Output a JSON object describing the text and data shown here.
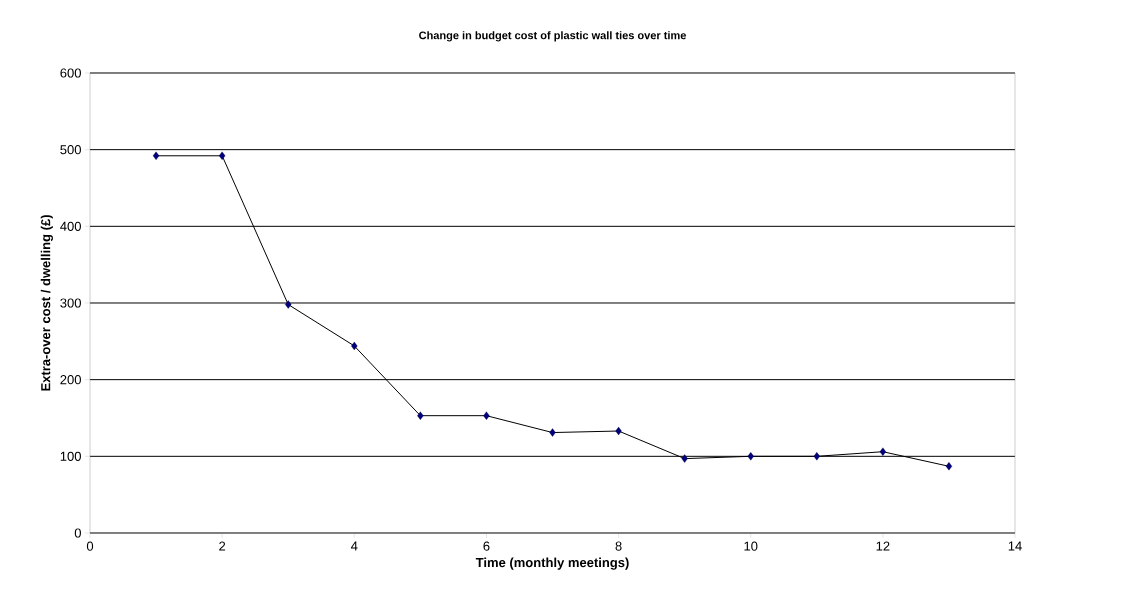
{
  "chart_data": {
    "type": "line",
    "title": "Change in budget cost of plastic wall ties over time",
    "xlabel": "Time (monthly meetings)",
    "ylabel": "Extra-over cost / dwelling (£)",
    "x": [
      1,
      2,
      3,
      4,
      5,
      6,
      7,
      8,
      9,
      10,
      11,
      12,
      13
    ],
    "series": [
      {
        "color": "#000080",
        "values": [
          492,
          492,
          298,
          244,
          153,
          153,
          131,
          133,
          97,
          100,
          100,
          106,
          87
        ]
      }
    ],
    "xlim": [
      0,
      14
    ],
    "xticks": [
      0,
      2,
      4,
      6,
      8,
      10,
      12,
      14
    ],
    "ylim": [
      0,
      600
    ],
    "yticks": [
      0,
      100,
      200,
      300,
      400,
      500,
      600
    ],
    "grid": "y",
    "marker": "diamond",
    "line_style": "solid"
  }
}
